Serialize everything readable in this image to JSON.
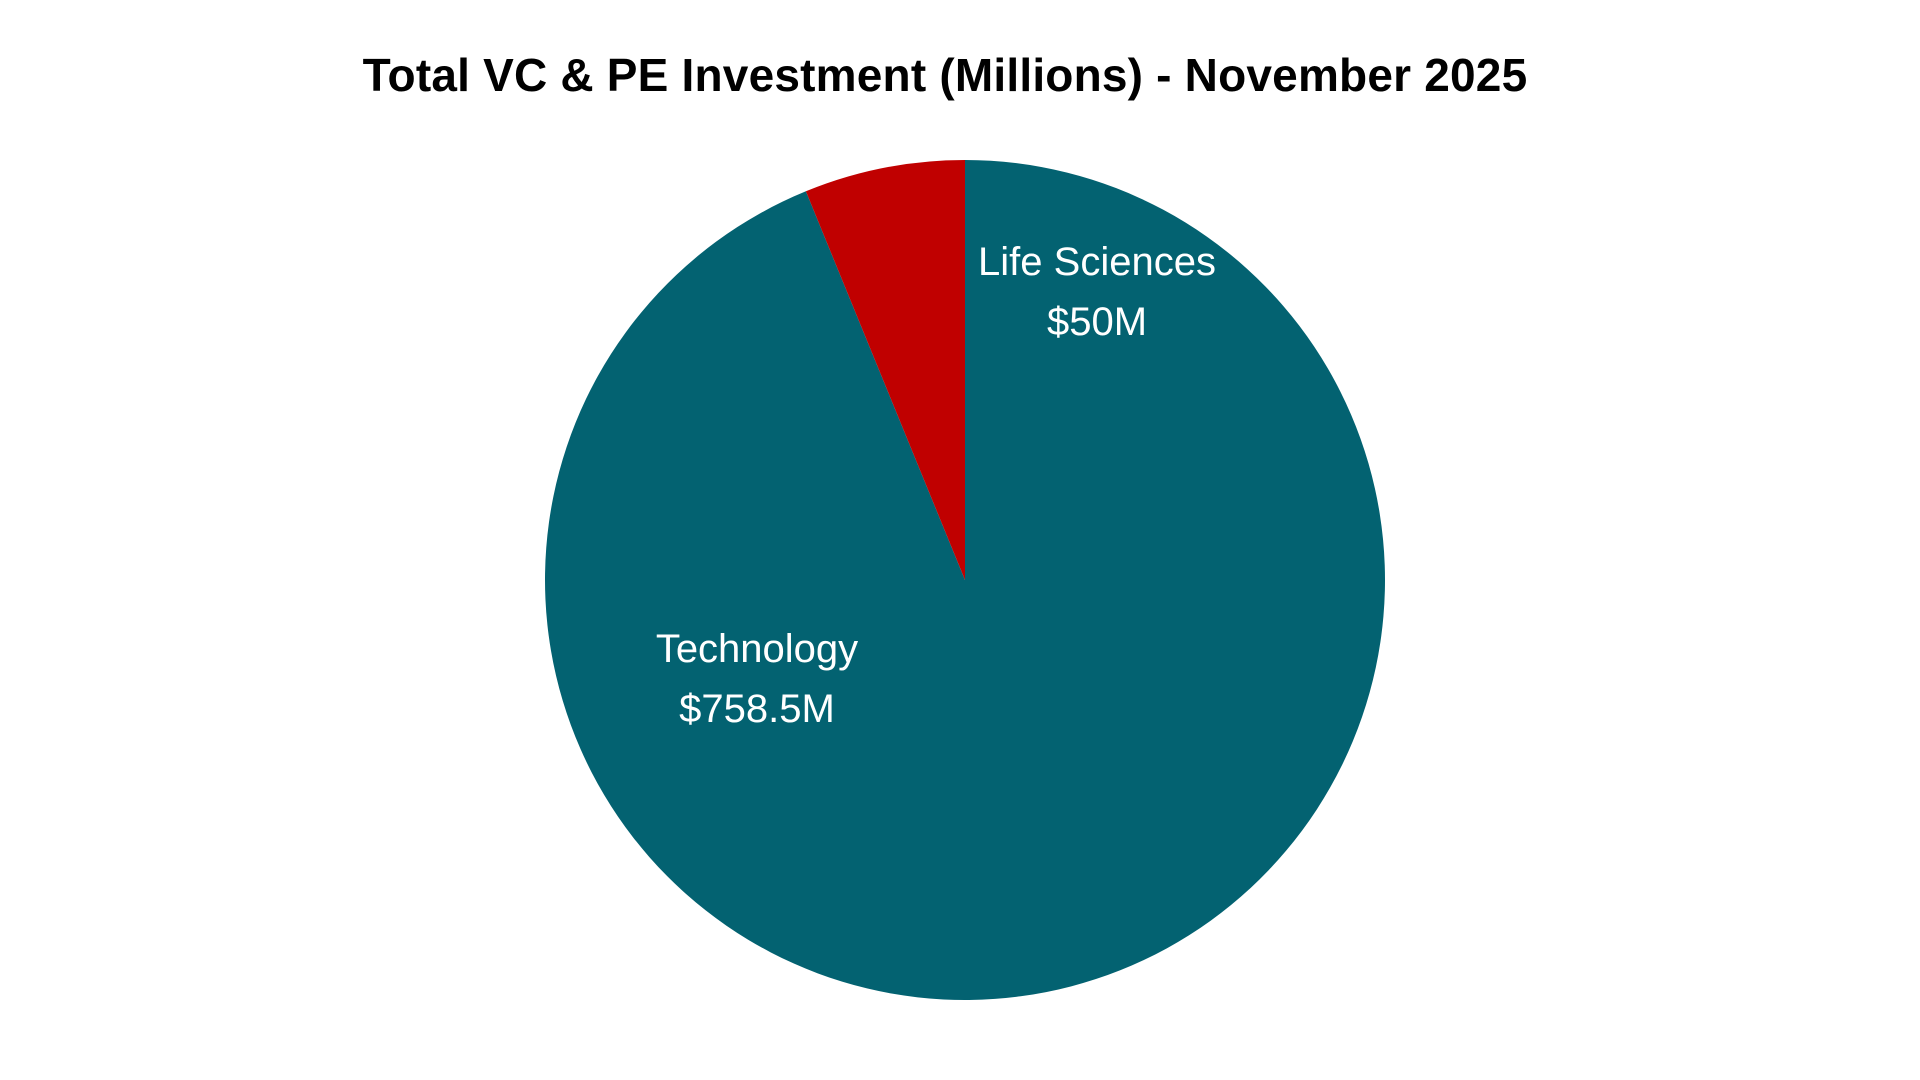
{
  "chart_data": {
    "type": "pie",
    "title": "Total VC & PE Investment (Millions) - November 2025",
    "slices": [
      {
        "name": "Technology",
        "value": 758.5,
        "label": "$758.5M",
        "color": "#036271"
      },
      {
        "name": "Life Sciences",
        "value": 50,
        "label": "$50M",
        "color": "#c00000"
      }
    ],
    "start_angle": "12 o'clock",
    "direction": "clockwise",
    "legend": "none"
  }
}
